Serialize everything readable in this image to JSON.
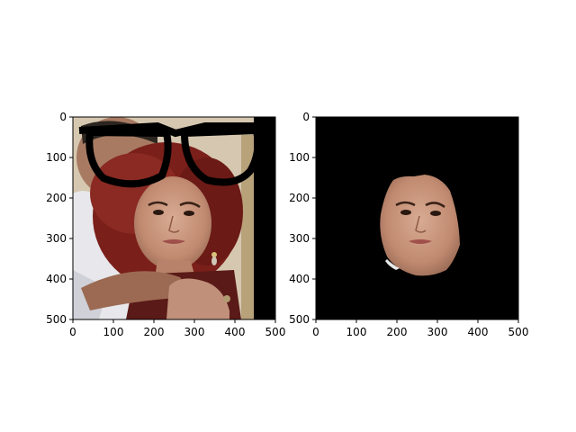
{
  "chart_data": [
    {
      "type": "image",
      "title": "",
      "xlabel": "",
      "ylabel": "",
      "xlim": [
        0,
        500
      ],
      "ylim": [
        500,
        0
      ],
      "x_ticks": [
        0,
        100,
        200,
        300,
        400,
        500
      ],
      "y_ticks": [
        0,
        100,
        200,
        300,
        400,
        500
      ],
      "x_tick_labels": [
        "0",
        "100",
        "200",
        "300",
        "400",
        "500"
      ],
      "y_tick_labels": [
        "0",
        "100",
        "200",
        "300",
        "400",
        "500"
      ],
      "content": "face photo with overlaid black eyeglasses",
      "colors": {
        "hair": "#7a1f1a",
        "skin": "#c9977e",
        "shirt": "#e8e8ec",
        "frame": "#000000",
        "background": "#d6c8b0"
      }
    },
    {
      "type": "image",
      "title": "",
      "xlabel": "",
      "ylabel": "",
      "xlim": [
        0,
        500
      ],
      "ylim": [
        500,
        0
      ],
      "x_ticks": [
        0,
        100,
        200,
        300,
        400,
        500
      ],
      "y_ticks": [
        0,
        100,
        200,
        300,
        400,
        500
      ],
      "x_tick_labels": [
        "0",
        "100",
        "200",
        "300",
        "400",
        "500"
      ],
      "y_tick_labels": [
        "0",
        "100",
        "200",
        "300",
        "400",
        "500"
      ],
      "content": "segmented face mask on black background",
      "colors": {
        "skin": "#c9977e",
        "background": "#000000"
      }
    }
  ]
}
